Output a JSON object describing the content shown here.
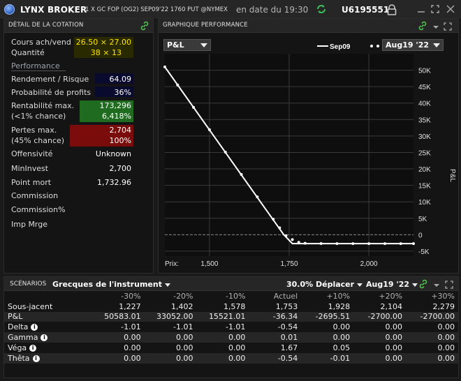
{
  "titlebar": {
    "brand": "LYNX BROKER",
    "instrument": "1 X GC FOP (OG2) SEP09'22 1760 PUT @NYMEX",
    "date_status": "en date du 19:30",
    "account": "U6195551"
  },
  "quote_panel": {
    "title": "DÉTAIL DE LA COTATION",
    "rows": [
      {
        "label": "Cours ach/vend",
        "value": "26.50 × 27.00"
      },
      {
        "label": "Quantité",
        "value": "38 × 13"
      }
    ],
    "performance_title": "Performance",
    "rendement_label": "Rendement / Risque",
    "rendement_value": "64.09",
    "probabilite_label": "Probabilité de profits",
    "probabilite_value": "36%",
    "rentabilite_label1": "Rentabilité max.",
    "rentabilite_label2": "(<1% chance)",
    "rentabilite_value1": "173,296",
    "rentabilite_value2": "6,418%",
    "pertes_label1": "Pertes max.",
    "pertes_label2": "(45% chance)",
    "pertes_value1": "2,704",
    "pertes_value2": "100%",
    "offensivite_label": "Offensivité",
    "offensivite_value": "Unknown",
    "mininvest_label": "MinInvest",
    "mininvest_value": "2,700",
    "pointmort_label": "Point mort",
    "pointmort_value": "1,732.96",
    "commission_label": "Commission",
    "commission_pct_label": "Commission%",
    "imp_label": "Imp Mrge",
    "colors": {
      "blue_box": "#0a0a2e",
      "green_box": "#1f6b1f",
      "red_box": "#7a0c0c"
    }
  },
  "chart_panel": {
    "title": "GRAPHIQUE PERFORMANCE",
    "metric_select": "P&L",
    "legend_sep": "Sep09",
    "legend_date_select": "Aug19 '22",
    "price_label": "Prix:",
    "y_axis_label": "P&L"
  },
  "chart_data": {
    "type": "line",
    "x_ticks": [
      "1,500",
      "1,750",
      "2,000"
    ],
    "x_tick_values": [
      1500,
      1750,
      2000
    ],
    "y_ticks": [
      "50K",
      "45K",
      "40K",
      "35K",
      "30K",
      "25K",
      "20K",
      "15K",
      "10K",
      "5K",
      "0",
      "-5K"
    ],
    "y_tick_values": [
      50000,
      45000,
      40000,
      35000,
      30000,
      25000,
      20000,
      15000,
      10000,
      5000,
      0,
      -5000
    ],
    "xlim": [
      1360,
      2140
    ],
    "ylim": [
      -6500,
      55000
    ],
    "series": [
      {
        "name": "Sep09",
        "style": "solid",
        "x": [
          1360,
          1733,
          1760,
          2140
        ],
        "y": [
          51000,
          0,
          -2700,
          -2700
        ]
      },
      {
        "name": "Aug19 '22",
        "style": "dotted",
        "x": [
          1360,
          1400,
          1450,
          1500,
          1550,
          1600,
          1650,
          1700,
          1720,
          1740,
          1760,
          1780,
          1800,
          1850,
          1900,
          1950,
          2000,
          2050,
          2100,
          2140
        ],
        "y": [
          51000,
          45500,
          38700,
          31900,
          25100,
          18300,
          11500,
          4700,
          2100,
          -300,
          -1500,
          -2300,
          -2600,
          -2680,
          -2700,
          -2700,
          -2700,
          -2700,
          -2700,
          -2700
        ]
      }
    ],
    "grid": true,
    "colors": {
      "line": "#ffffff",
      "zero_line": "#888888",
      "grid": "#3a3a3a"
    }
  },
  "scenarios": {
    "title": "SCÉNARIOS",
    "greeks_select": "Grecques de l'instrument",
    "shift_select": "30.0% Déplacer",
    "date_select": "Aug19 '22",
    "headers": [
      "",
      "-30%",
      "-20%",
      "-10%",
      "Actuel",
      "+10%",
      "+20%",
      "+30%"
    ],
    "rows": [
      {
        "label": "Sous-jacent",
        "info": false,
        "values": [
          "1,227",
          "1,402",
          "1,578",
          "1,753",
          "1,928",
          "2,104",
          "2,279"
        ]
      },
      {
        "label": "P&L",
        "info": false,
        "values": [
          "50583.01",
          "33052.00",
          "15521.01",
          "-36.34",
          "-2695.51",
          "-2700.00",
          "-2700.00"
        ]
      },
      {
        "label": "Delta",
        "info": true,
        "values": [
          "-1.01",
          "-1.01",
          "-1.01",
          "-0.54",
          "0.00",
          "0.00",
          "0.00"
        ]
      },
      {
        "label": "Gamma",
        "info": true,
        "values": [
          "0.00",
          "0.00",
          "0.00",
          "0.01",
          "0.00",
          "0.00",
          "0.00"
        ]
      },
      {
        "label": "Véga",
        "info": true,
        "values": [
          "0.00",
          "0.00",
          "0.00",
          "1.67",
          "0.05",
          "0.00",
          "0.00"
        ]
      },
      {
        "label": "Thêta",
        "info": true,
        "values": [
          "0.00",
          "0.00",
          "0.00",
          "-0.54",
          "-0.01",
          "0.00",
          "0.00"
        ]
      }
    ]
  },
  "icons": {
    "link": "link-icon",
    "refresh": "refresh-icon",
    "lock": "lock-icon",
    "minimize": "minimize-icon",
    "maximize": "maximize-icon",
    "close": "close-icon"
  }
}
